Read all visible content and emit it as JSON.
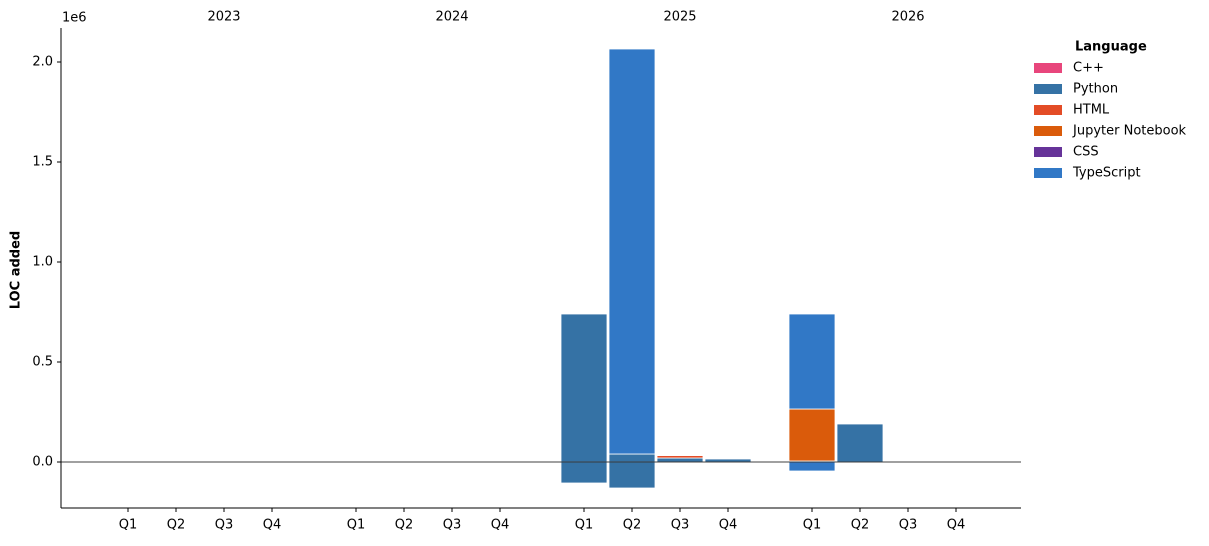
{
  "chart_data": {
    "type": "bar",
    "stacked": true,
    "y_label": "LOC added",
    "y_offset_label": "1e6",
    "groups": [
      "2023",
      "2024",
      "2025",
      "2026"
    ],
    "categories": [
      "Q1",
      "Q2",
      "Q3",
      "Q4",
      "Q1",
      "Q2",
      "Q3",
      "Q4",
      "Q1",
      "Q2",
      "Q3",
      "Q4",
      "Q1",
      "Q2",
      "Q3",
      "Q4"
    ],
    "legend_title": "Language",
    "legend": "upper right outside",
    "series": [
      {
        "name": "C++",
        "color": "#e8467c",
        "values": [
          null,
          null,
          null,
          null,
          null,
          null,
          null,
          null,
          null,
          null,
          null,
          null,
          null,
          null,
          null,
          null
        ],
        "removed": [
          null,
          null,
          null,
          null,
          null,
          null,
          null,
          null,
          null,
          null,
          null,
          null,
          null,
          null,
          null,
          null
        ]
      },
      {
        "name": "Python",
        "color": "#3572a5",
        "values": [
          null,
          null,
          null,
          null,
          null,
          null,
          null,
          null,
          0.74,
          0.04,
          0.02,
          0.015,
          0.005,
          0.19,
          null,
          null
        ],
        "removed": [
          null,
          null,
          null,
          null,
          null,
          null,
          null,
          null,
          -0.105,
          -0.13,
          null,
          null,
          null,
          null,
          null,
          null
        ]
      },
      {
        "name": "HTML",
        "color": "#e34c26",
        "values": [
          null,
          null,
          null,
          null,
          null,
          null,
          null,
          null,
          null,
          null,
          0.012,
          null,
          null,
          null,
          null,
          null
        ],
        "removed": [
          null,
          null,
          null,
          null,
          null,
          null,
          null,
          null,
          null,
          null,
          null,
          null,
          null,
          null,
          null,
          null
        ]
      },
      {
        "name": "Jupyter Notebook",
        "color": "#da5b0b",
        "values": [
          null,
          null,
          null,
          null,
          null,
          null,
          null,
          null,
          null,
          null,
          null,
          null,
          0.26,
          null,
          null,
          null
        ],
        "removed": [
          null,
          null,
          null,
          null,
          null,
          null,
          null,
          null,
          null,
          null,
          null,
          null,
          null,
          null,
          null,
          null
        ]
      },
      {
        "name": "CSS",
        "color": "#663399",
        "values": [
          null,
          null,
          null,
          null,
          null,
          null,
          null,
          null,
          null,
          null,
          null,
          null,
          null,
          null,
          null,
          null
        ],
        "removed": [
          null,
          null,
          null,
          null,
          null,
          null,
          null,
          null,
          null,
          null,
          null,
          null,
          null,
          null,
          null,
          null
        ]
      },
      {
        "name": "TypeScript",
        "color": "#3178c6",
        "values": [
          null,
          null,
          null,
          null,
          null,
          null,
          null,
          null,
          null,
          2.025,
          null,
          null,
          0.475,
          null,
          null,
          null
        ],
        "removed": [
          null,
          null,
          null,
          null,
          null,
          null,
          null,
          null,
          null,
          null,
          null,
          null,
          -0.045,
          null,
          null,
          null
        ]
      }
    ],
    "ylim": [
      -0.23,
      2.17
    ],
    "yticks": [
      {
        "value": 0,
        "label": "0.0"
      },
      0.5,
      {
        "value": 1,
        "label": "1.0"
      },
      1.5,
      {
        "value": 2,
        "label": "2.0"
      }
    ]
  }
}
